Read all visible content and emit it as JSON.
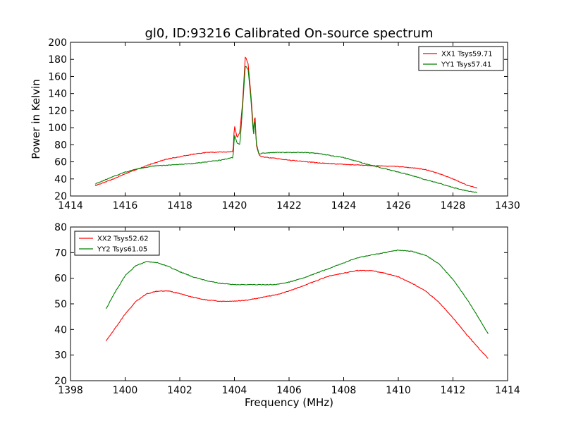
{
  "chart_data": [
    {
      "type": "line",
      "title": "gl0, ID:93216 Calibrated On-source spectrum",
      "xlabel": "",
      "ylabel": "Power in Kelvin",
      "xlim": [
        1414,
        1430
      ],
      "ylim": [
        20,
        200
      ],
      "xticks": [
        "1414",
        "1416",
        "1418",
        "1420",
        "1422",
        "1424",
        "1426",
        "1428",
        "1430"
      ],
      "yticks": [
        "20",
        "40",
        "60",
        "80",
        "100",
        "120",
        "140",
        "160",
        "180",
        "200"
      ],
      "legend_position": "top-right",
      "grid": false,
      "series": [
        {
          "name": "XX1 Tsys59.71",
          "color": "#ff0000",
          "x": [
            1414.9,
            1415.5,
            1416.0,
            1416.5,
            1417.0,
            1417.5,
            1418.0,
            1418.5,
            1419.0,
            1419.5,
            1419.95,
            1420.0,
            1420.1,
            1420.2,
            1420.3,
            1420.4,
            1420.5,
            1420.6,
            1420.7,
            1420.75,
            1420.8,
            1420.9,
            1421.0,
            1421.5,
            1422.0,
            1423.0,
            1424.0,
            1425.0,
            1426.0,
            1426.5,
            1427.0,
            1427.5,
            1428.0,
            1428.5,
            1428.9
          ],
          "y": [
            32,
            39,
            46,
            52,
            58,
            63,
            66,
            69,
            71,
            71.5,
            72,
            103,
            88,
            95,
            130,
            184,
            175,
            140,
            95,
            118,
            80,
            68,
            66,
            64,
            62,
            59,
            57,
            55.5,
            54.5,
            53,
            51,
            46,
            40,
            33,
            29
          ]
        },
        {
          "name": "YY1 Tsys57.41",
          "color": "#008000",
          "x": [
            1414.9,
            1415.5,
            1416.0,
            1416.5,
            1417.0,
            1417.5,
            1418.0,
            1418.5,
            1419.0,
            1419.5,
            1419.95,
            1420.0,
            1420.1,
            1420.2,
            1420.3,
            1420.4,
            1420.5,
            1420.6,
            1420.7,
            1420.75,
            1420.8,
            1420.9,
            1421.0,
            1421.5,
            1422.0,
            1422.5,
            1423.0,
            1424.0,
            1425.0,
            1426.0,
            1426.5,
            1427.0,
            1427.5,
            1428.0,
            1428.5,
            1428.9
          ],
          "y": [
            34,
            42,
            48,
            52,
            55,
            56,
            57,
            58,
            60,
            62,
            65,
            92,
            82,
            80,
            125,
            173,
            168,
            135,
            90,
            112,
            82,
            69,
            70,
            71,
            71,
            71,
            70,
            65,
            56,
            48,
            44,
            39,
            35,
            30,
            26,
            24
          ]
        }
      ]
    },
    {
      "type": "line",
      "title": "",
      "xlabel": "Frequency (MHz)",
      "ylabel": "",
      "xlim": [
        1398,
        1414
      ],
      "ylim": [
        20,
        80
      ],
      "xticks": [
        "1398",
        "1400",
        "1402",
        "1404",
        "1406",
        "1408",
        "1410",
        "1412",
        "1414"
      ],
      "yticks": [
        "20",
        "30",
        "40",
        "50",
        "60",
        "70",
        "80"
      ],
      "legend_position": "top-left",
      "grid": false,
      "series": [
        {
          "name": "XX2 Tsys52.62",
          "color": "#ff0000",
          "x": [
            1399.3,
            1399.6,
            1400.0,
            1400.4,
            1400.8,
            1401.2,
            1401.6,
            1402.0,
            1402.5,
            1403.0,
            1403.5,
            1404.0,
            1404.5,
            1405.0,
            1405.5,
            1406.0,
            1406.5,
            1407.0,
            1407.5,
            1408.0,
            1408.5,
            1409.0,
            1409.5,
            1410.0,
            1410.5,
            1411.0,
            1411.5,
            1412.0,
            1412.5,
            1413.0,
            1413.3
          ],
          "y": [
            35.5,
            40,
            46,
            51,
            54,
            55,
            55,
            54,
            52.5,
            51.5,
            51,
            51,
            51.5,
            52.5,
            53.5,
            55,
            57,
            59,
            61,
            62,
            63,
            63,
            62,
            60.5,
            58,
            55,
            50.5,
            44.5,
            38,
            32,
            28.5
          ]
        },
        {
          "name": "YY2 Tsys61.05",
          "color": "#008000",
          "x": [
            1399.3,
            1399.6,
            1400.0,
            1400.4,
            1400.8,
            1401.2,
            1401.6,
            1402.0,
            1402.5,
            1403.0,
            1403.5,
            1404.0,
            1404.5,
            1405.0,
            1405.5,
            1406.0,
            1406.5,
            1407.0,
            1407.5,
            1408.0,
            1408.5,
            1409.0,
            1409.5,
            1410.0,
            1410.5,
            1411.0,
            1411.5,
            1412.0,
            1412.5,
            1413.0,
            1413.3
          ],
          "y": [
            48,
            54,
            61,
            65,
            66.5,
            66,
            64.5,
            62.5,
            60.5,
            59,
            58,
            57.5,
            57.5,
            57.5,
            57.5,
            58.5,
            60,
            62,
            64,
            66,
            68,
            69,
            70,
            71,
            70.5,
            69,
            65.5,
            59.5,
            52,
            43.5,
            38
          ]
        }
      ]
    }
  ]
}
